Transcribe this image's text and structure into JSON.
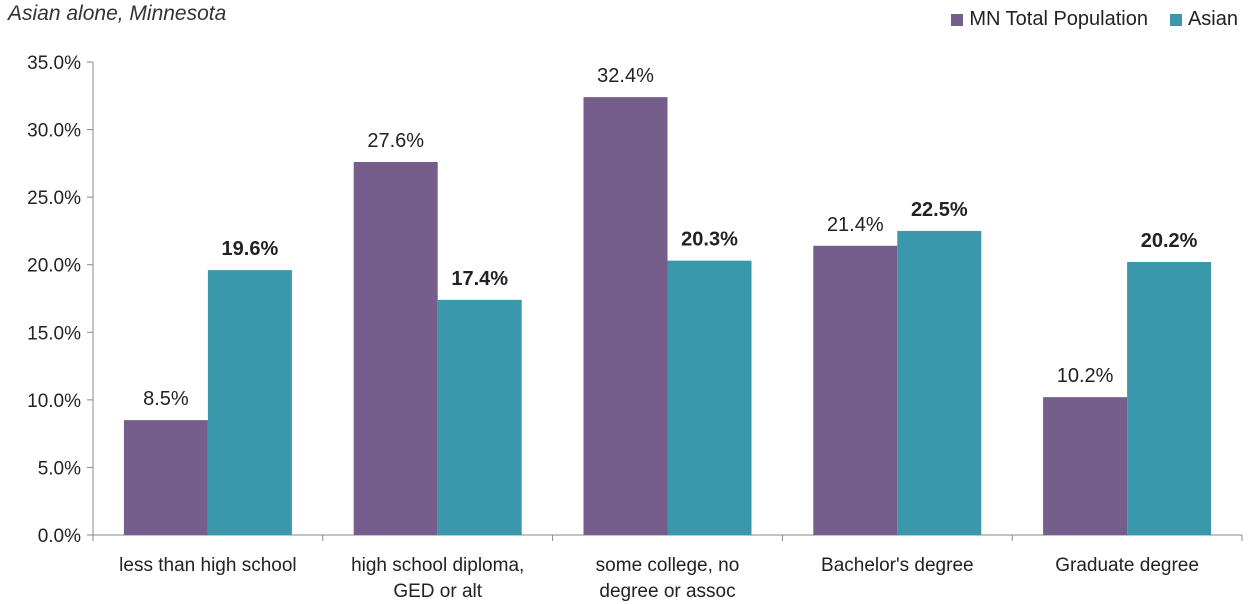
{
  "chart_data": {
    "type": "bar",
    "subtitle": "Asian alone, Minnesota",
    "categories": [
      [
        "less than high school"
      ],
      [
        "high school diploma,",
        "GED or alt"
      ],
      [
        "some college, no",
        "degree or assoc"
      ],
      [
        "Bachelor's degree"
      ],
      [
        "Graduate degree"
      ]
    ],
    "series": [
      {
        "name": "MN Total Population",
        "color": "#755d8c",
        "values": [
          8.5,
          27.6,
          32.4,
          21.4,
          10.2
        ],
        "labels": [
          "8.5%",
          "27.6%",
          "32.4%",
          "21.4%",
          "10.2%"
        ],
        "label_bold": false
      },
      {
        "name": "Asian",
        "color": "#3b98ac",
        "values": [
          19.6,
          17.4,
          20.3,
          22.5,
          20.2
        ],
        "labels": [
          "19.6%",
          "17.4%",
          "20.3%",
          "22.5%",
          "20.2%"
        ],
        "label_bold": true
      }
    ],
    "yticks": [
      "0.0%",
      "5.0%",
      "10.0%",
      "15.0%",
      "20.0%",
      "25.0%",
      "30.0%",
      "35.0%"
    ],
    "ylim": [
      0,
      35
    ],
    "grid": false,
    "legend_position": "top-right"
  }
}
